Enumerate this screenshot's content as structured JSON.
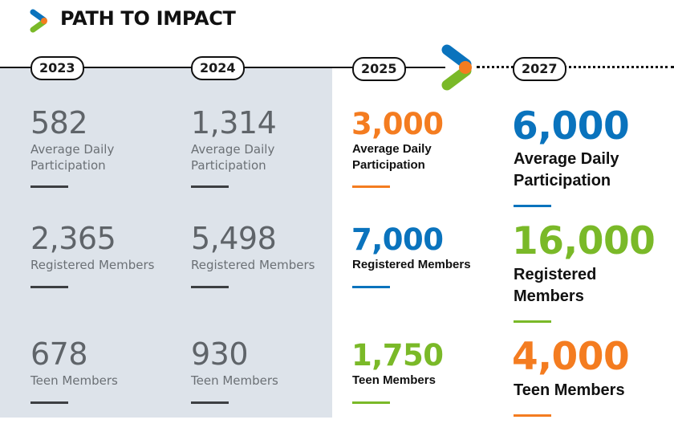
{
  "header": {
    "title": "PATH TO IMPACT"
  },
  "colors": {
    "orange": "#f47c20",
    "blue": "#0a73bd",
    "green": "#7ab928",
    "gray_panel": "#dde3ea"
  },
  "timeline": {
    "years": [
      "2023",
      "2024",
      "2025",
      "2027"
    ]
  },
  "columns": [
    {
      "year": "2023",
      "metrics": [
        {
          "value": "582",
          "label_line1": "Average Daily",
          "label_line2": "Participation"
        },
        {
          "value": "2,365",
          "label_line1": "Registered Members",
          "label_line2": ""
        },
        {
          "value": "678",
          "label_line1": "Teen Members",
          "label_line2": ""
        }
      ]
    },
    {
      "year": "2024",
      "metrics": [
        {
          "value": "1,314",
          "label_line1": "Average Daily",
          "label_line2": "Participation"
        },
        {
          "value": "5,498",
          "label_line1": "Registered Members",
          "label_line2": ""
        },
        {
          "value": "930",
          "label_line1": "Teen Members",
          "label_line2": ""
        }
      ]
    },
    {
      "year": "2025",
      "metrics": [
        {
          "value": "3,000",
          "label_line1": "Average Daily",
          "label_line2": "Participation",
          "color": "#f47c20"
        },
        {
          "value": "7,000",
          "label_line1": "Registered Members",
          "label_line2": "",
          "color": "#0a73bd"
        },
        {
          "value": "1,750",
          "label_line1": "Teen Members",
          "label_line2": "",
          "color": "#7ab928"
        }
      ]
    },
    {
      "year": "2027",
      "metrics": [
        {
          "value": "6,000",
          "label_line1": "Average Daily",
          "label_line2": "Participation",
          "color": "#0a73bd"
        },
        {
          "value": "16,000",
          "label_line1": "Registered",
          "label_line2": "Members",
          "color": "#7ab928"
        },
        {
          "value": "4,000",
          "label_line1": "Teen Members",
          "label_line2": "",
          "color": "#f47c20"
        }
      ]
    }
  ]
}
